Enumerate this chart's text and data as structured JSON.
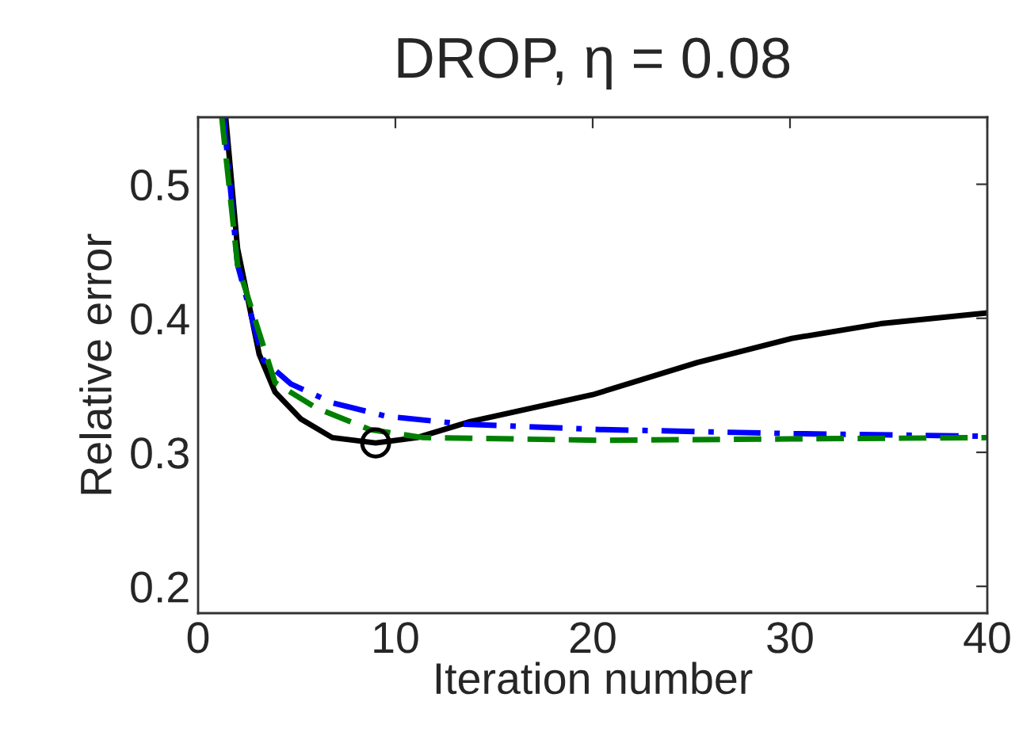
{
  "chart_data": {
    "type": "line",
    "title": "DROP, η = 0.08",
    "xlabel": "Iteration number",
    "ylabel": "Relative error",
    "xlim": [
      0,
      40
    ],
    "ylim": [
      0.18,
      0.55
    ],
    "xticks": [
      0,
      10,
      20,
      30,
      40
    ],
    "yticks": [
      0.2,
      0.3,
      0.4,
      0.5
    ],
    "grid": false,
    "legend": false,
    "series": [
      {
        "color": "#000000",
        "line_style": "solid",
        "x": [
          1.4,
          2.0,
          3.1,
          3.9,
          5.2,
          6.8,
          9.0,
          11.1,
          13.8,
          20.0,
          25.3,
          30.1,
          34.6,
          40
        ],
        "values": [
          0.55,
          0.452,
          0.373,
          0.345,
          0.325,
          0.311,
          0.307,
          0.311,
          0.323,
          0.343,
          0.367,
          0.385,
          0.396,
          0.404
        ]
      },
      {
        "color": "#0000ff",
        "line_style": "dashdot",
        "x": [
          1.3,
          2.0,
          3.3,
          4.7,
          6.8,
          9.5,
          13.5,
          20.4,
          30,
          40
        ],
        "values": [
          0.55,
          0.44,
          0.369,
          0.351,
          0.337,
          0.327,
          0.321,
          0.317,
          0.314,
          0.312
        ]
      },
      {
        "color": "#008000",
        "line_style": "dashed",
        "x": [
          1.2,
          2.0,
          3.9,
          6.0,
          8.7,
          11.4,
          20.4,
          30,
          40
        ],
        "values": [
          0.55,
          0.44,
          0.352,
          0.333,
          0.317,
          0.311,
          0.309,
          0.31,
          0.311
        ]
      },
      {
        "type": "scatter",
        "color": "#000000",
        "marker": "circle",
        "x": [
          9.0
        ],
        "values": [
          0.307
        ]
      }
    ]
  }
}
